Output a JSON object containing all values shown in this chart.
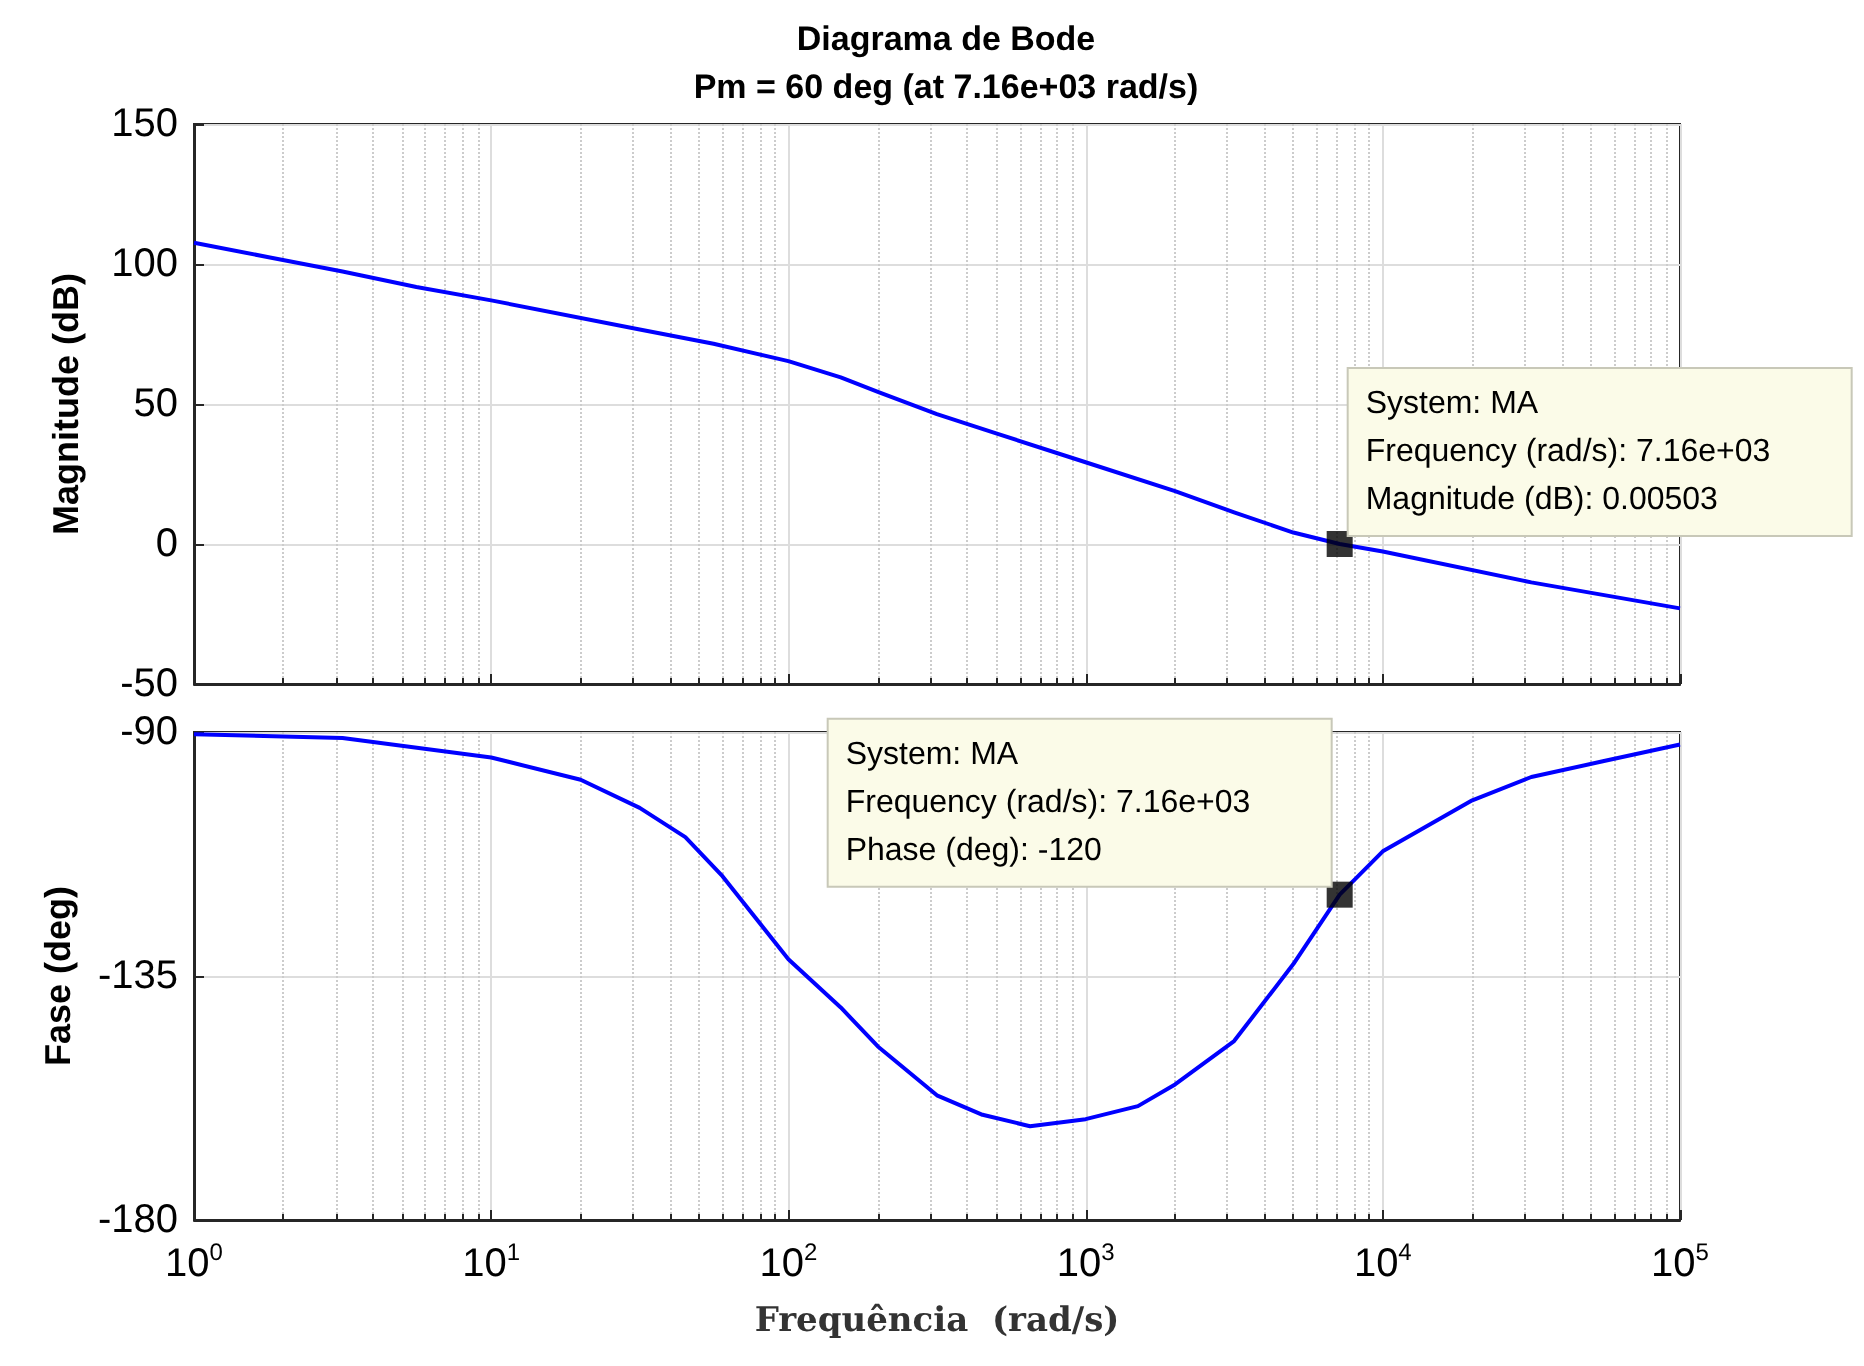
{
  "chart_data": [
    {
      "type": "line",
      "title": "Diagrama de Bode",
      "subtitle": "Pm = 60 deg (at 7.16e+03 rad/s)",
      "ylabel": "Magnitude (dB)",
      "log": "x",
      "grid": true,
      "tick_labels": "y",
      "marker": "none",
      "line_style": "solid",
      "xlim": [
        1,
        100000
      ],
      "xticks": [
        {
          "value": 1,
          "label": null
        },
        {
          "value": 10,
          "label": null
        },
        {
          "value": 100,
          "label": null
        },
        {
          "value": 1000,
          "label": null
        },
        {
          "value": 10000,
          "label": null
        },
        {
          "value": 100000,
          "label": null
        }
      ],
      "ylim": [
        -50,
        150
      ],
      "yticks": [
        -50,
        0,
        50,
        100,
        150
      ],
      "series": [
        {
          "type": "line",
          "color": "#0000ff",
          "x": [
            1,
            3.16,
            5.6,
            10,
            31.6,
            56,
            100,
            150,
            200,
            316,
            500,
            1000,
            2000,
            3160,
            5000,
            7160,
            10000,
            31600,
            100000
          ],
          "values": [
            107.6,
            97.3,
            91.8,
            87,
            76.6,
            71.5,
            65.3,
            59.5,
            54.3,
            46.4,
            39.5,
            29.2,
            18.9,
            11.3,
            4.1,
            0,
            -2.7,
            -13.7,
            -23
          ]
        },
        {
          "type": "scatter",
          "color": "#000000",
          "marker": "square",
          "x": [
            7160
          ],
          "values": [
            0
          ]
        }
      ],
      "annotations": [
        {
          "text": "System: MA\nFrequency (rad/s): 7.16e+03\nMagnitude (dB): 0.00503",
          "x": 7160,
          "y": 0.00503
        }
      ]
    },
    {
      "type": "line",
      "xlabel": "Frequência  (rad/s)",
      "ylabel": "Fase (deg)",
      "log": "x",
      "grid": true,
      "marker": "none",
      "line_style": "solid",
      "xlim": [
        1,
        100000
      ],
      "xticks": [
        {
          "value": 1,
          "label": "10$^{0}$"
        },
        {
          "value": 10,
          "label": "10$^{1}$"
        },
        {
          "value": 100,
          "label": "10$^{2}$"
        },
        {
          "value": 1000,
          "label": "10$^{3}$"
        },
        {
          "value": 10000,
          "label": "10$^{4}$"
        },
        {
          "value": 100000,
          "label": "10$^{5}$"
        }
      ],
      "ylim": [
        -180,
        -90
      ],
      "yticks": [
        -180,
        -135,
        -90
      ],
      "series": [
        {
          "type": "line",
          "color": "#0000ff",
          "x": [
            1,
            3.16,
            10,
            20,
            31.6,
            45,
            60,
            100,
            150,
            200,
            316,
            450,
            650,
            1000,
            1500,
            2000,
            3160,
            5000,
            7160,
            10000,
            20000,
            31600,
            55000,
            100000
          ],
          "values": [
            -90.4,
            -91.1,
            -94.7,
            -98.8,
            -104,
            -109.4,
            -116.6,
            -131.9,
            -140.8,
            -148,
            -157,
            -160.6,
            -162.7,
            -161.4,
            -159,
            -155,
            -147,
            -132.8,
            -120,
            -112,
            -102.6,
            -98.3,
            -95.4,
            -92.3
          ]
        },
        {
          "type": "scatter",
          "color": "#000000",
          "marker": "square",
          "x": [
            7160
          ],
          "values": [
            -120
          ]
        }
      ],
      "annotations": [
        {
          "text": "System: MA\nFrequency (rad/s): 7.16e+03\nPhase (deg): -120",
          "x": 7160,
          "y": -120
        }
      ]
    }
  ]
}
